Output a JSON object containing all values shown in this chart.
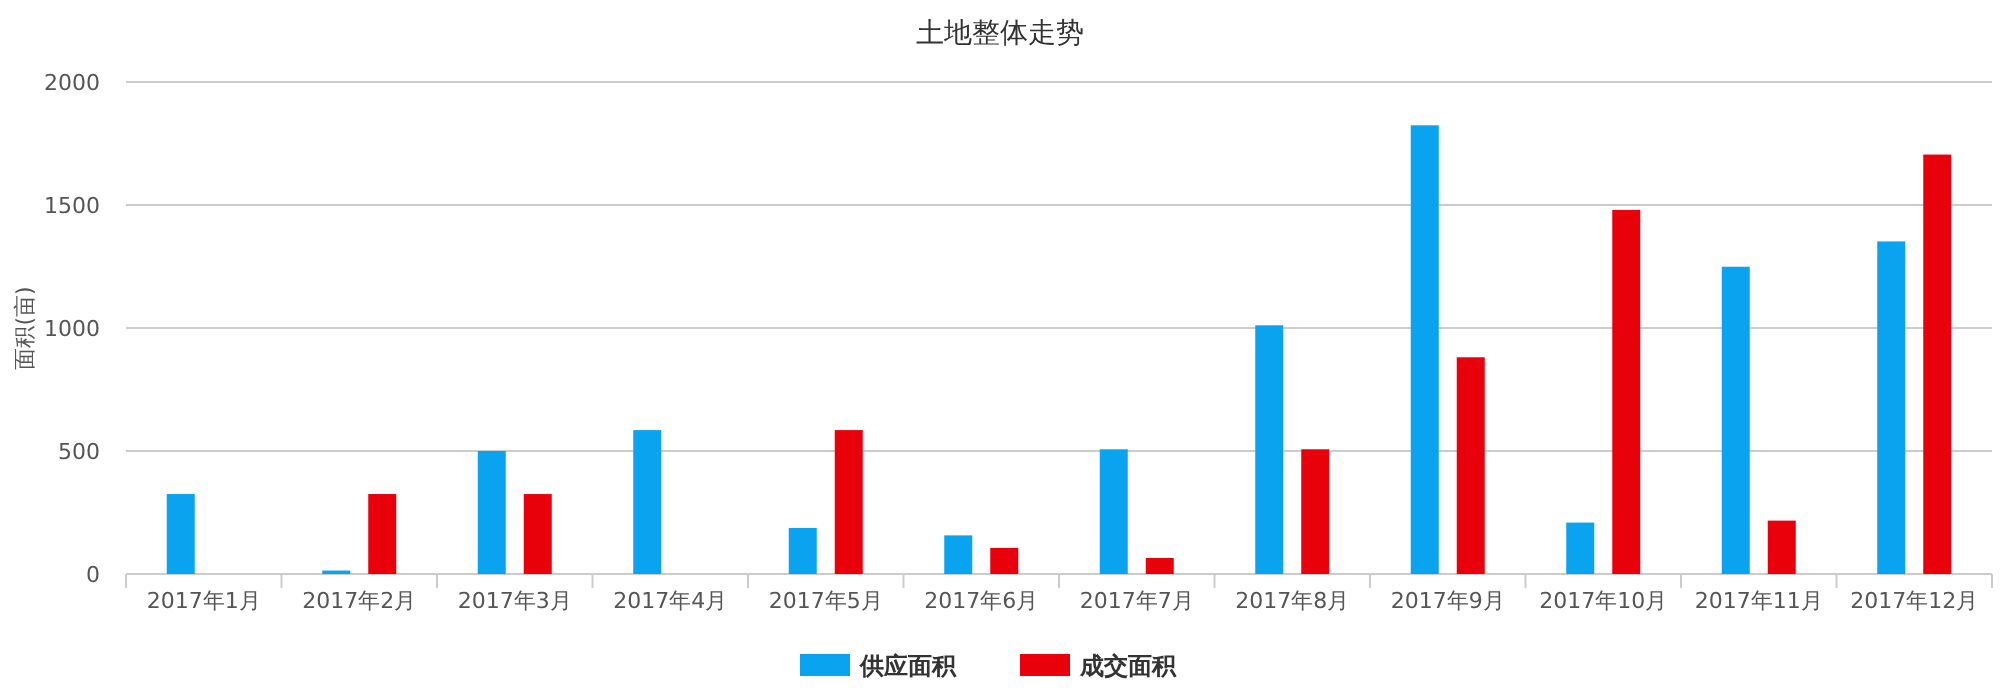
{
  "chart_data": {
    "type": "bar",
    "title": "土地整体走势",
    "ylabel": "面积(亩)",
    "categories": [
      "2017年1月",
      "2017年2月",
      "2017年3月",
      "2017年4月",
      "2017年5月",
      "2017年6月",
      "2017年7月",
      "2017年8月",
      "2017年9月",
      "2017年10月",
      "2017年11月",
      "2017年12月"
    ],
    "series": [
      {
        "name": "供应面积",
        "color": "#0aa3ef",
        "values": [
          325,
          14,
          500,
          585,
          187,
          157,
          507,
          1011,
          1824,
          209,
          1249,
          1352
        ]
      },
      {
        "name": "成交面积",
        "color": "#e8000b",
        "values": [
          null,
          325,
          325,
          null,
          585,
          106,
          65,
          507,
          881,
          1480,
          217,
          1705
        ]
      }
    ],
    "ylim": [
      0,
      2000
    ],
    "yticks": [
      0,
      500,
      1000,
      1500,
      2000
    ],
    "grid": "y",
    "legend": "bottom"
  }
}
